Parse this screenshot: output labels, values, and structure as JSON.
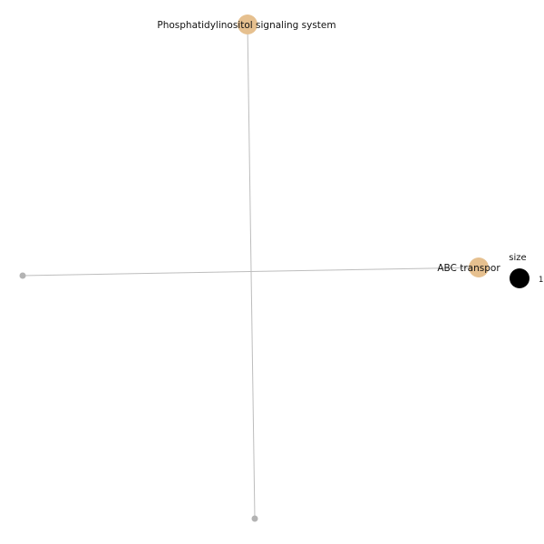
{
  "network": {
    "nodes": [
      {
        "id": "pis",
        "label": "Phosphatidylinositol signaling system",
        "kind": "category",
        "color": "#e6c08f"
      },
      {
        "id": "abc",
        "label": "ABC transpor",
        "kind": "category",
        "color": "#e6c08f"
      },
      {
        "id": "gene-left",
        "label": "",
        "kind": "gene",
        "color": "#b3b3b3"
      },
      {
        "id": "gene-bottom",
        "label": "",
        "kind": "gene",
        "color": "#b3b3b3"
      }
    ],
    "edges": [
      {
        "source": "pis",
        "target": "gene-bottom",
        "color": "#bdbdbd"
      },
      {
        "source": "abc",
        "target": "gene-left",
        "color": "#bdbdbd"
      }
    ]
  },
  "legend": {
    "title": "size",
    "value": "1",
    "marker_color": "#000000"
  }
}
